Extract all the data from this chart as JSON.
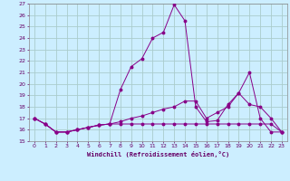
{
  "xlabel": "Windchill (Refroidissement éolien,°C)",
  "bg_color": "#cceeff",
  "grid_color": "#aacccc",
  "line_color": "#880088",
  "xlim": [
    -0.5,
    23.5
  ],
  "ylim": [
    15,
    27
  ],
  "xticks": [
    0,
    1,
    2,
    3,
    4,
    5,
    6,
    7,
    8,
    9,
    10,
    11,
    12,
    13,
    14,
    15,
    16,
    17,
    18,
    19,
    20,
    21,
    22,
    23
  ],
  "yticks": [
    15,
    16,
    17,
    18,
    19,
    20,
    21,
    22,
    23,
    24,
    25,
    26,
    27
  ],
  "series1_x": [
    0,
    1,
    2,
    3,
    4,
    5,
    6,
    7,
    8,
    9,
    10,
    11,
    12,
    13,
    14,
    15,
    16,
    17,
    18,
    19,
    20,
    21,
    22,
    23
  ],
  "series1_y": [
    17.0,
    16.5,
    15.8,
    15.8,
    16.0,
    16.2,
    16.4,
    16.5,
    19.5,
    21.5,
    22.2,
    24.0,
    24.5,
    26.9,
    25.5,
    18.0,
    16.7,
    16.8,
    18.2,
    19.2,
    21.0,
    17.0,
    15.8,
    15.8
  ],
  "series2_x": [
    0,
    1,
    2,
    3,
    4,
    5,
    6,
    7,
    8,
    9,
    10,
    11,
    12,
    13,
    14,
    15,
    16,
    17,
    18,
    19,
    20,
    21,
    22,
    23
  ],
  "series2_y": [
    17.0,
    16.5,
    15.8,
    15.8,
    16.0,
    16.2,
    16.4,
    16.5,
    16.5,
    16.5,
    16.5,
    16.5,
    16.5,
    16.5,
    16.5,
    16.5,
    16.5,
    16.5,
    16.5,
    16.5,
    16.5,
    16.5,
    16.5,
    15.8
  ],
  "series3_x": [
    0,
    1,
    2,
    3,
    4,
    5,
    6,
    7,
    8,
    9,
    10,
    11,
    12,
    13,
    14,
    15,
    16,
    17,
    18,
    19,
    20,
    21,
    22,
    23
  ],
  "series3_y": [
    17.0,
    16.5,
    15.8,
    15.8,
    16.0,
    16.2,
    16.4,
    16.5,
    16.7,
    17.0,
    17.2,
    17.5,
    17.8,
    18.0,
    18.5,
    18.5,
    17.0,
    17.5,
    18.0,
    19.2,
    18.2,
    18.0,
    17.0,
    15.8
  ]
}
